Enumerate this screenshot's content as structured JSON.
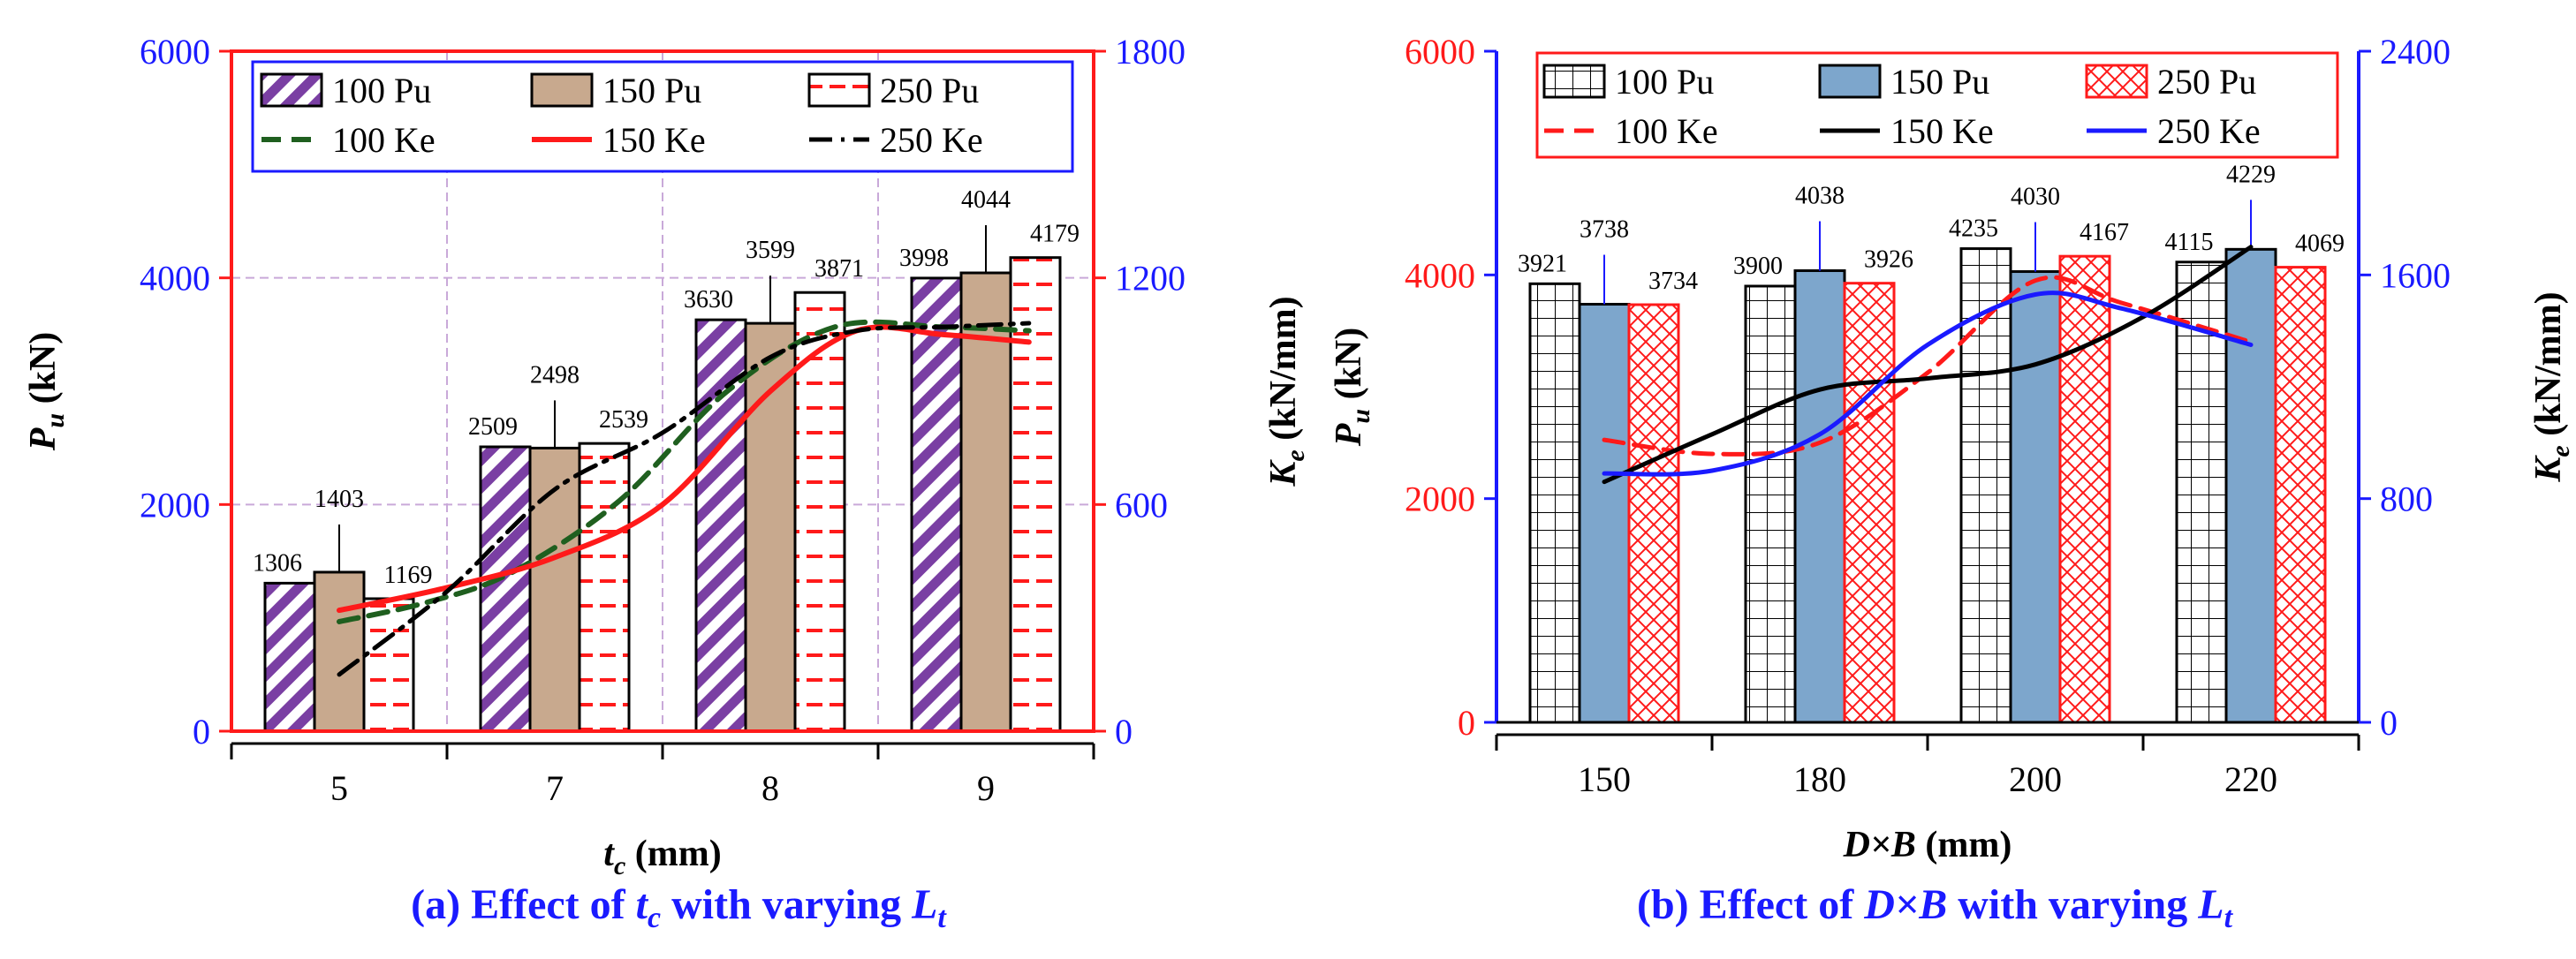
{
  "colors": {
    "blue": "#1a1aff",
    "red": "#ff1a1a",
    "purple": "#7a3fa3",
    "tan": "#c8a98e",
    "darkgreen": "#1f5f1f",
    "steelblue": "#7da6cc",
    "grid": "#c9a9d9"
  },
  "chart_data": [
    {
      "type": "bar",
      "id": "a",
      "caption": {
        "pre": "(a) Effect of ",
        "var": "t",
        "var_sub": "c",
        "mid": " with varying ",
        "var2": "L",
        "var2_sub": "t"
      },
      "categories": [
        "5",
        "7",
        "8",
        "9"
      ],
      "xlabel": {
        "main": "t",
        "sub": "c",
        "rest": " (mm)"
      },
      "ylabel_left": {
        "main": "P",
        "sub": "u",
        "rest": " (kN)"
      },
      "ylabel_right": {
        "main": "K",
        "sub": "e",
        "rest": " (kN/mm)"
      },
      "ylim_left": [
        0,
        6000
      ],
      "ylim_right": [
        0,
        1800
      ],
      "yticks_left": [
        "0",
        "2000",
        "4000",
        "6000"
      ],
      "yticks_right": [
        "0",
        "600",
        "1200",
        "1800"
      ],
      "bar_series": [
        {
          "name": "100 Pu",
          "values": [
            1306,
            2509,
            3630,
            3998
          ]
        },
        {
          "name": "150 Pu",
          "values": [
            1403,
            2498,
            3599,
            4044
          ]
        },
        {
          "name": "250 Pu",
          "values": [
            1169,
            2539,
            3871,
            4179
          ]
        }
      ],
      "line_series": [
        {
          "name": "100 Ke",
          "points": [
            [
              0.0,
              290
            ],
            [
              0.4,
              340
            ],
            [
              0.8,
              420
            ],
            [
              1.3,
              610
            ],
            [
              1.8,
              900
            ],
            [
              2.3,
              1070
            ],
            [
              2.8,
              1070
            ],
            [
              3.2,
              1060
            ]
          ]
        },
        {
          "name": "150 Ke",
          "points": [
            [
              0.0,
              320
            ],
            [
              0.5,
              380
            ],
            [
              1.0,
              460
            ],
            [
              1.5,
              600
            ],
            [
              2.0,
              900
            ],
            [
              2.4,
              1060
            ],
            [
              2.8,
              1050
            ],
            [
              3.2,
              1030
            ]
          ]
        },
        {
          "name": "250 Ke",
          "points": [
            [
              0.0,
              150
            ],
            [
              0.5,
              370
            ],
            [
              1.0,
              640
            ],
            [
              1.5,
              790
            ],
            [
              2.0,
              990
            ],
            [
              2.4,
              1060
            ],
            [
              2.8,
              1070
            ],
            [
              3.2,
              1080
            ]
          ]
        }
      ]
    },
    {
      "type": "bar",
      "id": "b",
      "caption": {
        "pre": "(b) Effect of ",
        "var": "D×B",
        "var_sub": "",
        "mid": " with varying ",
        "var2": "L",
        "var2_sub": "t"
      },
      "categories": [
        "150",
        "180",
        "200",
        "220"
      ],
      "xlabel": {
        "main": "D×B",
        "sub": "",
        "rest": " (mm)"
      },
      "ylabel_left": {
        "main": "P",
        "sub": "u",
        "rest": " (kN)"
      },
      "ylabel_right": {
        "main": "K",
        "sub": "e",
        "rest": " (kN/mm)"
      },
      "ylim_left": [
        0,
        6000
      ],
      "ylim_right": [
        0,
        2400
      ],
      "yticks_left": [
        "0",
        "2000",
        "4000",
        "6000"
      ],
      "yticks_right": [
        "0",
        "800",
        "1600",
        "2400"
      ],
      "bar_series": [
        {
          "name": "100 Pu",
          "values": [
            3921,
            3900,
            4235,
            4115
          ]
        },
        {
          "name": "150 Pu",
          "values": [
            3738,
            4038,
            4030,
            4229
          ]
        },
        {
          "name": "250 Pu",
          "values": [
            3734,
            3926,
            4167,
            4069
          ]
        }
      ],
      "line_series": [
        {
          "name": "100 Ke",
          "points": [
            [
              0.0,
              1010
            ],
            [
              0.5,
              960
            ],
            [
              1.0,
              1000
            ],
            [
              1.5,
              1250
            ],
            [
              2.0,
              1580
            ],
            [
              2.4,
              1500
            ],
            [
              3.0,
              1360
            ]
          ]
        },
        {
          "name": "150 Ke",
          "points": [
            [
              0.0,
              860
            ],
            [
              0.5,
              1030
            ],
            [
              1.0,
              1190
            ],
            [
              1.5,
              1230
            ],
            [
              2.0,
              1280
            ],
            [
              2.5,
              1450
            ],
            [
              3.0,
              1700
            ]
          ]
        },
        {
          "name": "250 Ke",
          "points": [
            [
              0.0,
              890
            ],
            [
              0.5,
              900
            ],
            [
              1.0,
              1030
            ],
            [
              1.5,
              1350
            ],
            [
              2.0,
              1530
            ],
            [
              2.4,
              1480
            ],
            [
              3.0,
              1350
            ]
          ]
        }
      ]
    }
  ]
}
